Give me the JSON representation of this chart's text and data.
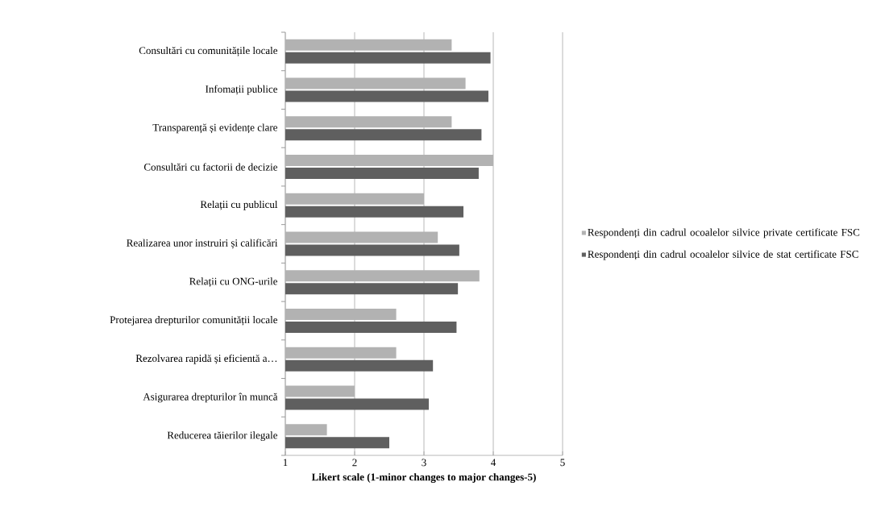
{
  "chart_data": {
    "type": "bar",
    "orientation": "horizontal",
    "xlabel": "Likert scale (1-minor changes to major changes-5)",
    "categories": [
      "Consultări cu comunitățile locale",
      "Infomații publice",
      "Transparență și evidențe clare",
      "Consultări cu factorii de decizie",
      "Relații cu publicul",
      "Realizarea unor instruiri și calificări",
      "Relații cu ONG-urile",
      "Protejarea drepturilor comunității locale",
      "Rezolvarea rapidă și eficientă a…",
      "Asigurarea drepturilor în muncă",
      "Reducerea tăierilor ilegale"
    ],
    "series": [
      {
        "name": "Respondenți din cadrul ocoalelor silvice private certificate FSC",
        "color": "#b2b2b2",
        "values": [
          3.4,
          3.6,
          3.4,
          4.0,
          3.0,
          3.2,
          3.8,
          2.6,
          2.6,
          2.0,
          1.6
        ]
      },
      {
        "name": "Respondenți din cadrul ocoalelor silvice de stat certificate FSC",
        "color": "#5f5f5f",
        "values": [
          3.96,
          3.93,
          3.83,
          3.79,
          3.57,
          3.51,
          3.49,
          3.47,
          3.13,
          3.07,
          2.5
        ]
      }
    ],
    "xlim": [
      1,
      5
    ],
    "xticks": [
      1,
      2,
      3,
      4,
      5
    ],
    "grid": "x",
    "legend": "right"
  }
}
